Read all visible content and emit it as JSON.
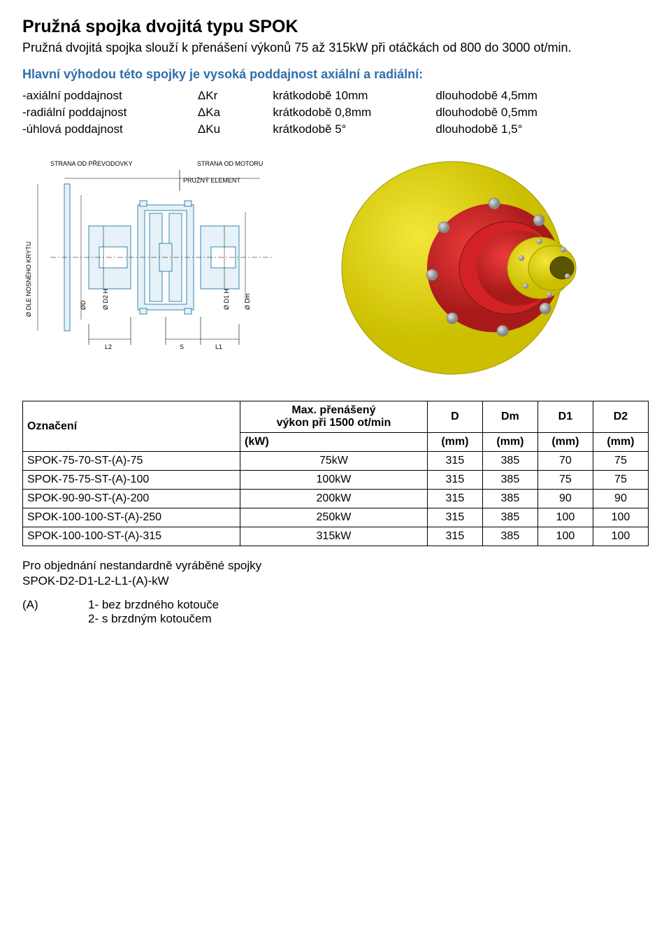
{
  "title": "Pružná spojka dvojitá typu SPOK",
  "intro": "Pružná dvojitá spojka slouží k přenášení výkonů 75 až 315kW při otáčkách od 800 do 3000 ot/min.",
  "subhead": "Hlavní výhodou této spojky je vysoká poddajnost axiální a radiální:",
  "flex_rows": [
    {
      "name": "-axiální poddajnost",
      "sym": "ΔKr",
      "short": "krátkodobě 10mm",
      "long": "dlouhodobě 4,5mm"
    },
    {
      "name": "-radiální poddajnost",
      "sym": "ΔKa",
      "short": "krátkodobě 0,8mm",
      "long": "dlouhodobě 0,5mm"
    },
    {
      "name": "-úhlová poddajnost",
      "sym": "ΔKu",
      "short": "krátkodobě 5°",
      "long": "dlouhodobě 1,5°"
    }
  ],
  "drawing_labels": {
    "left_side": "STRANA OD PŘEVODOVKY",
    "right_side": "STRANA OD MOTORU",
    "pruzny": "PRUŽNÝ ELEMENT",
    "y_left": "Ø DLE NOSNÉHO KRYTU",
    "d": "ØD",
    "d2": "Ø D2 H8",
    "d1": "Ø D1 H8",
    "dm": "Ø Dm",
    "l2": "L2",
    "s": "S",
    "l1": "L1"
  },
  "table": {
    "head": {
      "c0": "Označení",
      "c1a": "Max. přenášený",
      "c1b": "výkon při 1500 ot/min",
      "c2": "D",
      "c3": "Dm",
      "c4": "D1",
      "c5": "D2",
      "u1": "(kW)",
      "u2": "(mm)",
      "u3": "(mm)",
      "u4": "(mm)",
      "u5": "(mm)"
    },
    "rows": [
      {
        "c0": "SPOK-75-70-ST-(A)-75",
        "c1": "75kW",
        "c2": "315",
        "c3": "385",
        "c4": "70",
        "c5": "75"
      },
      {
        "c0": "SPOK-75-75-ST-(A)-100",
        "c1": "100kW",
        "c2": "315",
        "c3": "385",
        "c4": "75",
        "c5": "75"
      },
      {
        "c0": "SPOK-90-90-ST-(A)-200",
        "c1": "200kW",
        "c2": "315",
        "c3": "385",
        "c4": "90",
        "c5": "90"
      },
      {
        "c0": "SPOK-100-100-ST-(A)-250",
        "c1": "250kW",
        "c2": "315",
        "c3": "385",
        "c4": "100",
        "c5": "100"
      },
      {
        "c0": "SPOK-100-100-ST-(A)-315",
        "c1": "315kW",
        "c2": "315",
        "c3": "385",
        "c4": "100",
        "c5": "100"
      }
    ]
  },
  "ordering_line": "Pro objednání nestandardně vyráběné spojky",
  "ordering_code": "SPOK-D2-D1-L2-L1-(A)-kW",
  "variant_a": "(A)",
  "variant_1": "1- bez brzdného kotouče",
  "variant_2": "2- s brzdným kotoučem",
  "colors": {
    "blue": "#2e6faa",
    "red": "#d22226",
    "yellow": "#e3d000",
    "grey": "#b6b6b6",
    "draw_fill": "#e6f2f7",
    "draw_stroke": "#0a6aa1",
    "black": "#000000"
  }
}
